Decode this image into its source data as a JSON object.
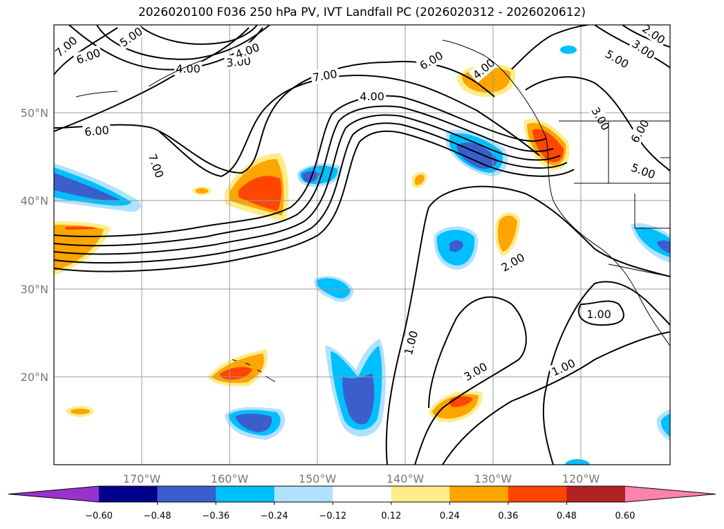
{
  "title": "2026020100 F036 250 hPa PV, IVT Landfall PC (2026020312 - 2026020612)",
  "axes": {
    "lon_ticks": [
      "170°W",
      "160°W",
      "150°W",
      "140°W",
      "130°W",
      "120°W"
    ],
    "lat_ticks": [
      "50°N",
      "40°N",
      "30°N",
      "20°N"
    ]
  },
  "colorbar": {
    "ticks": [
      "−0.60",
      "−0.48",
      "−0.36",
      "−0.24",
      "−0.12",
      "0.12",
      "0.24",
      "0.36",
      "0.48",
      "0.60"
    ],
    "colors": [
      "#9932cc",
      "#00008b",
      "#3a5fcd",
      "#00bfff",
      "#b0e2ff",
      "#ffffff",
      "#ffec8b",
      "#ffa500",
      "#ff4500",
      "#b22222",
      "#ff82ab"
    ],
    "extend": "both"
  },
  "pv_contour_labels": [
    "7.00",
    "6.00",
    "5.00",
    "4.00",
    "3.00",
    "4.00",
    "7.00",
    "4.00",
    "6.00",
    "6.00",
    "7.00",
    "2.00",
    "4.00",
    "3.00",
    "5.00",
    "3.00",
    "6.00",
    "5.00",
    "2.00",
    "1.00",
    "1.00",
    "3.00",
    "1.00"
  ]
}
